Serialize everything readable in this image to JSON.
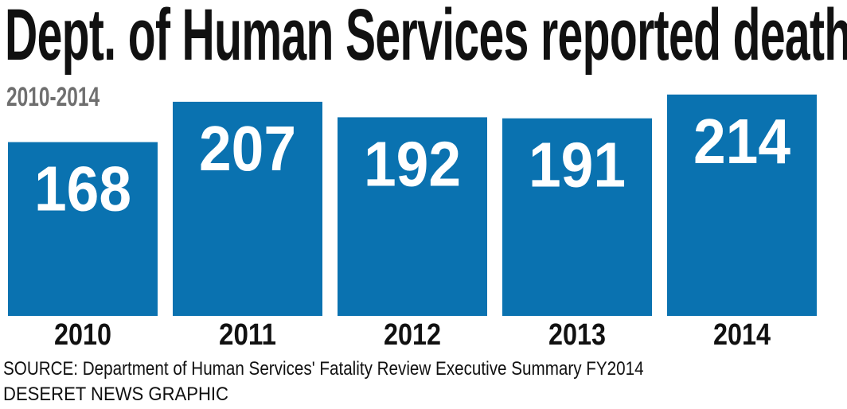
{
  "chart_data": {
    "type": "bar",
    "title": "Dept. of Human Services reported deaths",
    "subtitle": "2010-2014",
    "categories": [
      "2010",
      "2011",
      "2012",
      "2013",
      "2014"
    ],
    "values": [
      168,
      207,
      192,
      191,
      214
    ],
    "xlabel": "",
    "ylabel": "",
    "grid": false,
    "legend": "none",
    "data_labels": "inside-top"
  },
  "source": "SOURCE: Department of Human Services' Fatality Review Executive Summary FY2014",
  "credit": "DESERET NEWS GRAPHIC",
  "colors": {
    "bar": "#0a72b0",
    "bar_label": "#ffffff",
    "text": "#111111",
    "subtitle": "#6f6f6f"
  }
}
